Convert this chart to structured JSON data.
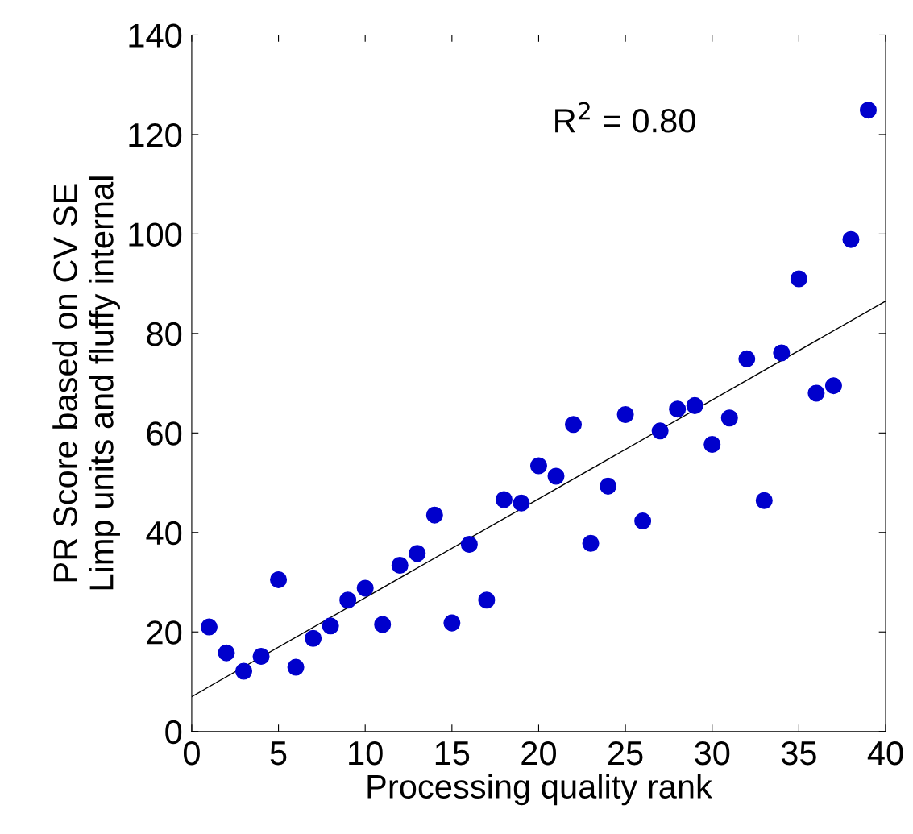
{
  "chart_data": {
    "type": "scatter",
    "xlabel": "Processing quality rank",
    "ylabel": "PR Score based on CV SE\nLimp units and fluffy internal",
    "annotations": [
      "R$^{2}$ = 0.80"
    ],
    "series": [
      {
        "color": "#0000cc",
        "marker": "circle",
        "x": [
          1,
          2,
          3,
          4,
          5,
          6,
          7,
          8,
          9,
          10,
          11,
          12,
          13,
          14,
          15,
          16,
          17,
          18,
          19,
          20,
          21,
          22,
          23,
          24,
          25,
          26,
          27,
          28,
          29,
          30,
          31,
          32,
          33,
          34,
          35,
          36,
          37,
          38,
          39
        ],
        "values": [
          21,
          15.8,
          12.1,
          15.1,
          30.5,
          12.9,
          18.7,
          21.2,
          26.4,
          28.8,
          21.5,
          33.4,
          35.8,
          43.5,
          21.8,
          37.6,
          26.4,
          46.6,
          45.9,
          53.4,
          51.3,
          61.7,
          37.8,
          49.3,
          63.7,
          42.3,
          60.4,
          64.8,
          65.5,
          57.7,
          63,
          74.9,
          46.4,
          76.1,
          91,
          68,
          69.5,
          98.9,
          124.9
        ]
      },
      {
        "type": "line",
        "color": "#000000",
        "x": [
          0,
          40
        ],
        "values": [
          7,
          86.5
        ]
      }
    ],
    "xlim": [
      0,
      40
    ],
    "ylim": [
      0,
      140
    ],
    "xticks": [
      0,
      5,
      10,
      15,
      20,
      25,
      30,
      35,
      40
    ],
    "yticks": [
      0,
      20,
      40,
      60,
      80,
      100,
      120,
      140
    ],
    "grid": false
  }
}
